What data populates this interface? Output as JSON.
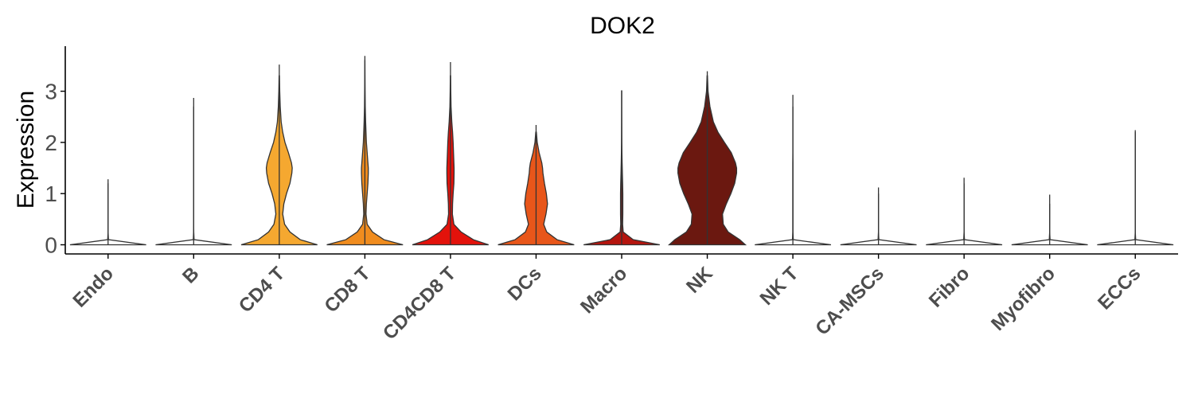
{
  "chart_data": {
    "type": "violin",
    "title": "DOK2",
    "xlabel": "",
    "ylabel": "Expression",
    "ylim": [
      -0.2,
      3.85
    ],
    "yticks": [
      0,
      1,
      2,
      3
    ],
    "grid": false,
    "legend": "none",
    "categories": [
      "Endo",
      "B",
      "CD4 T",
      "CD8 T",
      "CD4CD8 T",
      "DCs",
      "Macro",
      "NK",
      "NK T",
      "CA-MSCs",
      "Fibro",
      "Myofibro",
      "ECCs"
    ],
    "series": [
      {
        "max": [
          1.28,
          2.87,
          3.52,
          3.69,
          3.57,
          2.34,
          3.02,
          3.39,
          2.93,
          1.12,
          1.31,
          0.98,
          2.24
        ],
        "colors": [
          "#ffffff",
          "#ffffff",
          "#f5a830",
          "#f08c1e",
          "#e3120b",
          "#e8561a",
          "#b5150e",
          "#6b1810",
          "#ffffff",
          "#ffffff",
          "#ffffff",
          "#ffffff",
          "#ffffff"
        ],
        "density_y": [
          0,
          0.1,
          0.25,
          0.4,
          0.6,
          0.8,
          1.0,
          1.2,
          1.4,
          1.5,
          1.6,
          1.8,
          2.0,
          2.2,
          2.4,
          2.7,
          3.0,
          3.3,
          3.6
        ],
        "density_width": [
          [
            1.0,
            0.01,
            0,
            0,
            0,
            0,
            0,
            0,
            0,
            0,
            0,
            0,
            0,
            0,
            0,
            0,
            0,
            0,
            0
          ],
          [
            1.0,
            0.01,
            0.002,
            0,
            0,
            0,
            0,
            0,
            0,
            0,
            0,
            0,
            0,
            0,
            0,
            0,
            0,
            0,
            0
          ],
          [
            1.0,
            0.55,
            0.28,
            0.14,
            0.09,
            0.12,
            0.19,
            0.28,
            0.33,
            0.34,
            0.32,
            0.24,
            0.15,
            0.09,
            0.05,
            0.025,
            0.012,
            0.005,
            0
          ],
          [
            1.0,
            0.5,
            0.2,
            0.06,
            0.03,
            0.04,
            0.06,
            0.08,
            0.09,
            0.09,
            0.08,
            0.06,
            0.04,
            0.03,
            0.02,
            0.01,
            0.006,
            0.003,
            0.001
          ],
          [
            1.0,
            0.6,
            0.28,
            0.09,
            0.05,
            0.055,
            0.07,
            0.09,
            0.095,
            0.095,
            0.09,
            0.08,
            0.07,
            0.055,
            0.035,
            0.015,
            0.008,
            0.004,
            0
          ],
          [
            1.0,
            0.55,
            0.28,
            0.2,
            0.26,
            0.3,
            0.27,
            0.22,
            0.18,
            0.17,
            0.15,
            0.08,
            0.03,
            0.008,
            0,
            0,
            0,
            0,
            0
          ],
          [
            1.0,
            0.3,
            0.04,
            0.025,
            0.03,
            0.03,
            0.03,
            0.025,
            0.018,
            0.015,
            0.012,
            0.007,
            0.004,
            0.003,
            0.002,
            0.001,
            0.001,
            0,
            0
          ],
          [
            1.0,
            0.85,
            0.55,
            0.42,
            0.4,
            0.5,
            0.62,
            0.72,
            0.77,
            0.77,
            0.74,
            0.63,
            0.45,
            0.28,
            0.16,
            0.07,
            0.02,
            0.005,
            0
          ],
          [
            1.0,
            0.01,
            0.002,
            0.002,
            0.002,
            0.002,
            0.002,
            0.002,
            0.002,
            0.002,
            0.002,
            0,
            0,
            0,
            0,
            0,
            0,
            0,
            0
          ],
          [
            1.0,
            0.01,
            0,
            0,
            0,
            0,
            0,
            0,
            0,
            0,
            0,
            0,
            0,
            0,
            0,
            0,
            0,
            0,
            0
          ],
          [
            1.0,
            0.01,
            0,
            0,
            0,
            0,
            0,
            0,
            0,
            0,
            0,
            0,
            0,
            0,
            0,
            0,
            0,
            0,
            0
          ],
          [
            1.0,
            0.01,
            0,
            0,
            0,
            0,
            0,
            0,
            0,
            0,
            0,
            0,
            0,
            0,
            0,
            0,
            0,
            0,
            0
          ],
          [
            1.0,
            0.01,
            0,
            0,
            0,
            0,
            0,
            0,
            0,
            0,
            0,
            0,
            0,
            0,
            0,
            0,
            0,
            0,
            0
          ]
        ]
      }
    ]
  }
}
